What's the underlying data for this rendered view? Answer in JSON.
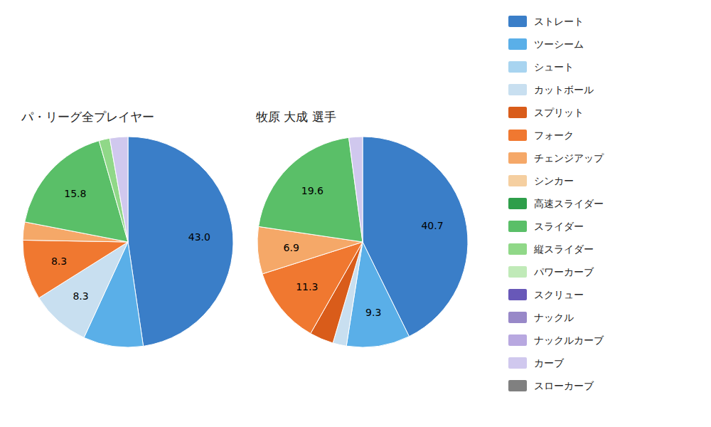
{
  "chart_data": [
    {
      "type": "pie",
      "title": "パ・リーグ全プレイヤー",
      "categories": [
        "ストレート",
        "ツーシーム",
        "シュート",
        "カットボール",
        "スプリット",
        "フォーク",
        "チェンジアップ",
        "シンカー",
        "高速スライダー",
        "スライダー",
        "縦スライダー",
        "パワーカーブ",
        "スクリュー",
        "ナックル",
        "ナックルカーブ",
        "カーブ",
        "スローカーブ"
      ],
      "values": [
        43.0,
        8.3,
        null,
        8.3,
        null,
        8.3,
        2.5,
        null,
        null,
        15.8,
        1.5,
        null,
        null,
        null,
        null,
        2.5,
        null
      ],
      "value_labels": [
        "43.0",
        null,
        null,
        "8.3",
        null,
        "8.3",
        null,
        null,
        null,
        "15.8",
        null,
        null,
        null,
        null,
        null,
        null,
        null
      ],
      "colors": [
        "#3a7ec8",
        "#5aafe8",
        "#a8d4f0",
        "#c8dff0",
        "#d95c1a",
        "#f07830",
        "#f5a868",
        "#f5cfa0",
        "#2e9e4a",
        "#5abf68",
        "#90d888",
        "#c0eab8",
        "#6858b8",
        "#9888c8",
        "#b8a8e0",
        "#d0c8ee",
        "#808080"
      ],
      "data_labels": true,
      "legend": "right"
    },
    {
      "type": "pie",
      "title": "牧原 大成  選手",
      "categories": [
        "ストレート",
        "ツーシーム",
        "シュート",
        "カットボール",
        "スプリット",
        "フォーク",
        "チェンジアップ",
        "シンカー",
        "高速スライダー",
        "スライダー",
        "縦スライダー",
        "パワーカーブ",
        "スクリュー",
        "ナックル",
        "ナックルカーブ",
        "カーブ",
        "スローカーブ"
      ],
      "values": [
        40.7,
        9.3,
        null,
        2.0,
        3.5,
        11.3,
        6.9,
        null,
        null,
        19.6,
        null,
        null,
        null,
        null,
        null,
        2.0,
        null
      ],
      "value_labels": [
        "40.7",
        "9.3",
        null,
        null,
        null,
        "11.3",
        "6.9",
        null,
        null,
        "19.6",
        null,
        null,
        null,
        null,
        null,
        null,
        null
      ],
      "colors": [
        "#3a7ec8",
        "#5aafe8",
        "#a8d4f0",
        "#c8dff0",
        "#d95c1a",
        "#f07830",
        "#f5a868",
        "#f5cfa0",
        "#2e9e4a",
        "#5abf68",
        "#90d888",
        "#c0eab8",
        "#6858b8",
        "#9888c8",
        "#b8a8e0",
        "#d0c8ee",
        "#808080"
      ],
      "data_labels": true
    }
  ]
}
